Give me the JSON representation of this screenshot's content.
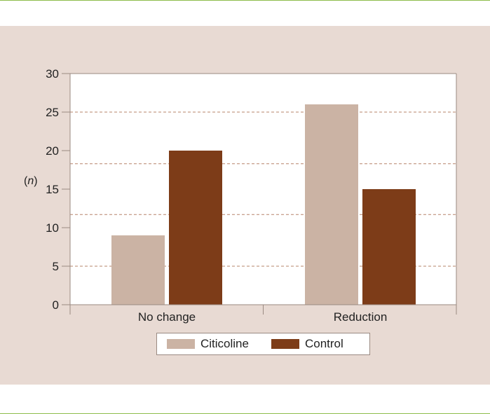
{
  "colors": {
    "rule": "#8dbd4a",
    "panel_bg": "#e8dad3",
    "plot_bg": "#ffffff",
    "grid": "#b7846a",
    "axis": "#9a8a82"
  },
  "chart_data": {
    "type": "bar",
    "ylabel_prefix": "(",
    "ylabel_italic": "n",
    "ylabel_suffix": ")",
    "categories": [
      "No change",
      "Reduction"
    ],
    "series": [
      {
        "name": "Citicoline",
        "color": "#cbb3a4",
        "values": [
          9,
          26
        ]
      },
      {
        "name": "Control",
        "color": "#7d3c18",
        "values": [
          20,
          15
        ]
      }
    ],
    "ylim": [
      0,
      30
    ],
    "yticks": [
      "0",
      "5",
      "10",
      "15",
      "20",
      "25",
      "30"
    ],
    "grid_lines": [
      5,
      11.7,
      18.3,
      25
    ],
    "grid": "dashed horizontal",
    "legend_position": "bottom-center"
  }
}
